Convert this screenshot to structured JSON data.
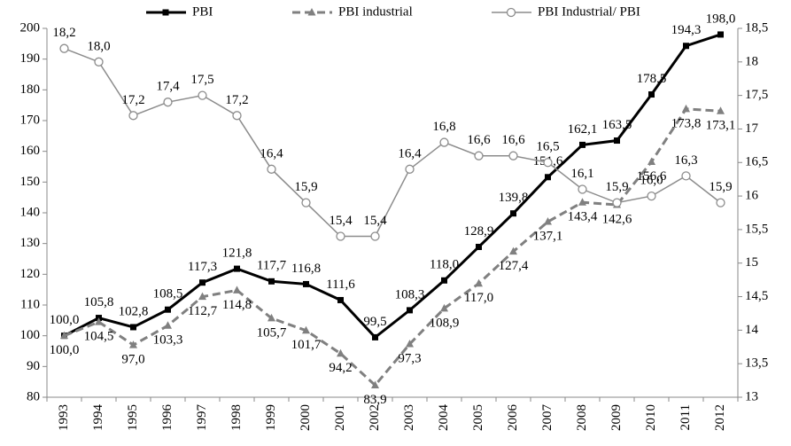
{
  "chart_data": {
    "type": "line",
    "categories": [
      "1993",
      "1994",
      "1995",
      "1996",
      "1997",
      "1998",
      "1999",
      "2000",
      "2001",
      "2002",
      "2003",
      "2004",
      "2005",
      "2006",
      "2007",
      "2008",
      "2009",
      "2010",
      "2011",
      "2012"
    ],
    "series": [
      {
        "name": "PBI",
        "color": "#000000",
        "marker": "square",
        "dash": false,
        "label_side": "above",
        "values": [
          100.0,
          105.8,
          102.8,
          108.5,
          117.3,
          121.8,
          117.7,
          116.8,
          111.6,
          99.5,
          108.3,
          118.0,
          128.9,
          139.8,
          151.6,
          162.1,
          163.5,
          178.5,
          194.3,
          198.0
        ],
        "value_labels": [
          "100,0",
          "105,8",
          "102,8",
          "108,5",
          "117,3",
          "121,8",
          "117,7",
          "116,8",
          "111,6",
          "99,5",
          "108,3",
          "118,0",
          "128,9",
          "139,8",
          "151,6",
          "162,1",
          "163,5",
          "178,5",
          "194,3",
          "198,0"
        ]
      },
      {
        "name": "PBI industrial",
        "color": "#808080",
        "marker": "triangle",
        "dash": true,
        "label_side": "below",
        "values": [
          100.0,
          104.5,
          97.0,
          103.3,
          112.7,
          114.8,
          105.7,
          101.7,
          94.2,
          83.9,
          97.3,
          108.9,
          117.0,
          127.4,
          137.1,
          143.4,
          142.6,
          156.6,
          173.8,
          173.1
        ],
        "value_labels": [
          "100,0",
          "104,5",
          "97,0",
          "103,3",
          "112,7",
          "114,8",
          "105,7",
          "101,7",
          "94,2",
          "83,9",
          "97,3",
          "108,9",
          "117,0",
          "127,4",
          "137,1",
          "143,4",
          "142,6",
          "156,6",
          "173,8",
          "173,1"
        ]
      },
      {
        "name": "PBI Industrial/ PBI",
        "color": "#8c8c8c",
        "marker": "circle",
        "dash": false,
        "label_side": "above",
        "axis": "y2",
        "values": [
          18.2,
          18.0,
          17.2,
          17.4,
          17.5,
          17.2,
          16.4,
          15.9,
          15.4,
          15.4,
          16.4,
          16.8,
          16.6,
          16.6,
          16.5,
          16.1,
          15.9,
          16.0,
          16.3,
          15.9
        ],
        "value_labels": [
          "18,2",
          "18,0",
          "17,2",
          "17,4",
          "17,5",
          "17,2",
          "16,4",
          "15,9",
          "15,4",
          "15,4",
          "16,4",
          "16,8",
          "16,6",
          "16,6",
          "16,5",
          "16,1",
          "15,9",
          "16,0",
          "16,3",
          "15,9"
        ]
      }
    ],
    "ylim": [
      80,
      200
    ],
    "yticks": [
      80,
      90,
      100,
      110,
      120,
      130,
      140,
      150,
      160,
      170,
      180,
      190,
      200
    ],
    "y2lim": [
      13,
      18.5
    ],
    "y2ticks": [
      13,
      {
        "value": 13.5,
        "label": "13,5"
      },
      14,
      {
        "value": 14.5,
        "label": "14,5"
      },
      15,
      {
        "value": 15.5,
        "label": "15,5"
      },
      16,
      {
        "value": 16.5,
        "label": "16,5"
      },
      17,
      {
        "value": 17.5,
        "label": "17,5"
      },
      18,
      {
        "value": 18.5,
        "label": "18,5"
      }
    ],
    "legend": "top"
  }
}
